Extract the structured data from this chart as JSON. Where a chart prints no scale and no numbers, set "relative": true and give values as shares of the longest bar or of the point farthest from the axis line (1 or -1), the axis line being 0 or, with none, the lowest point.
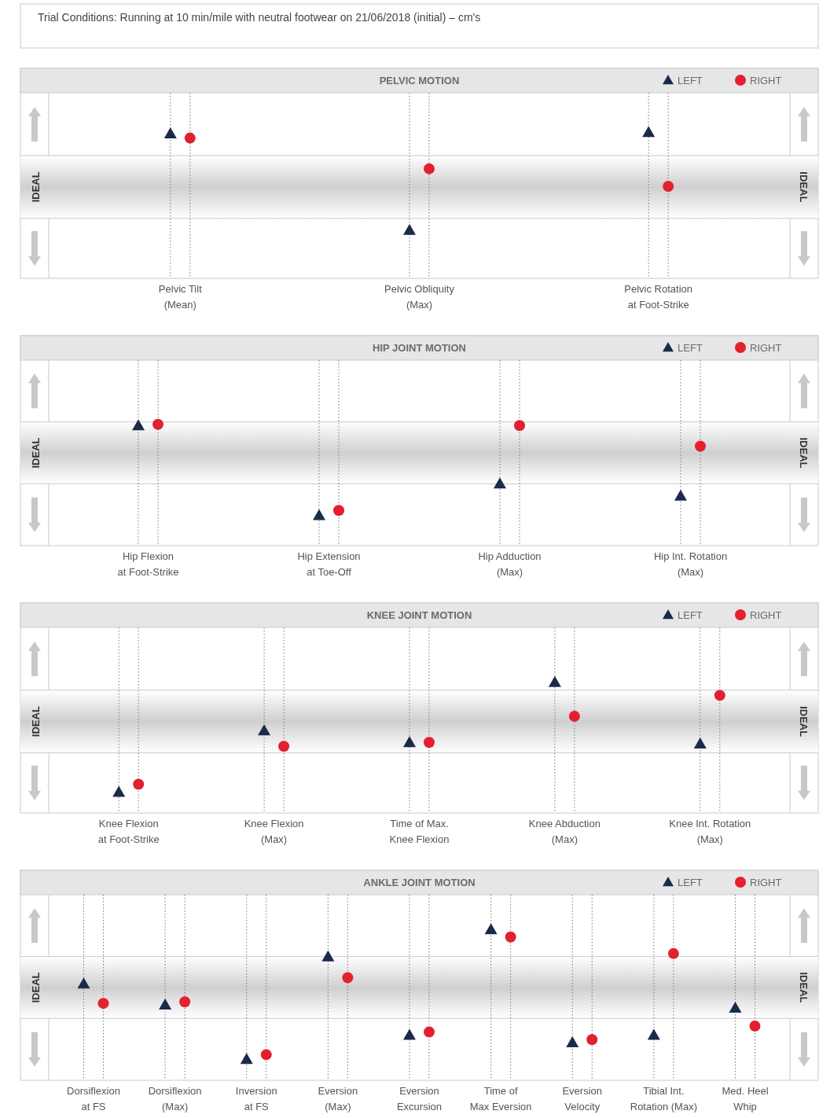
{
  "chart_data": [
    {
      "type": "scatter",
      "title": "PELVIC MOTION",
      "relative": true,
      "annotations": [
        "Trial Conditions: Running at 10 min/mile with neutral footwear on 21/06/2018 (initial) – cm's"
      ],
      "categories": [
        "Pelvic Tilt\n(Mean)",
        "Pelvic Obliquity\n(Max)",
        "Pelvic Rotation\nat Foot-Strike"
      ],
      "legend": "top right",
      "grid": "x",
      "series": [
        {
          "name": "LEFT",
          "color": "#1b2a4a",
          "marker": "triangle",
          "values": [
            0.99,
            0.33,
            1
          ]
        },
        {
          "name": "RIGHT",
          "color": "#e3202f",
          "marker": "circle",
          "values": [
            0.96,
            0.75,
            0.63
          ]
        }
      ],
      "bands": [
        {
          "axis": "y",
          "from": 0.41,
          "to": 0.84,
          "label": "IDEAL",
          "color": "#cfcfcf"
        }
      ]
    },
    {
      "type": "scatter",
      "title": "HIP JOINT MOTION",
      "relative": true,
      "categories": [
        "Hip Flexion\nat Foot-Strike",
        "Hip Extension\nat Toe-Off",
        "Hip Adduction\n(Max)",
        "Hip Int. Rotation\n(Max)"
      ],
      "legend": "top right",
      "grid": "x",
      "series": [
        {
          "name": "LEFT",
          "color": "#1b2a4a",
          "marker": "triangle",
          "values": [
            0.99,
            0.25,
            0.51,
            0.41
          ]
        },
        {
          "name": "RIGHT",
          "color": "#e3202f",
          "marker": "circle",
          "values": [
            1,
            0.29,
            0.99,
            0.82
          ]
        }
      ],
      "bands": [
        {
          "axis": "y",
          "from": 0.51,
          "to": 1.02,
          "label": "IDEAL",
          "color": "#cfcfcf"
        }
      ]
    },
    {
      "type": "scatter",
      "title": "KNEE JOINT MOTION",
      "relative": true,
      "categories": [
        "Knee Flexion\nat Foot-Strike",
        "Knee Flexion\n(Max)",
        "Time of Max.\nKnee Flexion",
        "Knee Abduction\n(Max)",
        "Knee Int. Rotation\n(Max)"
      ],
      "legend": "top right",
      "grid": "x",
      "series": [
        {
          "name": "LEFT",
          "color": "#1b2a4a",
          "marker": "triangle",
          "values": [
            0.16,
            0.63,
            0.54,
            1,
            0.53
          ]
        },
        {
          "name": "RIGHT",
          "color": "#e3202f",
          "marker": "circle",
          "values": [
            0.22,
            0.51,
            0.54,
            0.74,
            0.9
          ]
        }
      ],
      "bands": [
        {
          "axis": "y",
          "from": 0.46,
          "to": 0.94,
          "label": "IDEAL",
          "color": "#cfcfcf"
        }
      ]
    },
    {
      "type": "scatter",
      "title": "ANKLE JOINT MOTION",
      "relative": true,
      "categories": [
        "Dorsiflexion\nat FS",
        "Dorsiflexion\n(Max)",
        "Inversion\nat FS",
        "Eversion\n(Max)",
        "Eversion\nExcursion",
        "Time of\nMax Eversion",
        "Eversion\nVelocity",
        "Tibial Int.\nRotation (Max)",
        "Med. Heel\nWhip"
      ],
      "legend": "top right",
      "grid": "x",
      "series": [
        {
          "name": "LEFT",
          "color": "#1b2a4a",
          "marker": "triangle",
          "values": [
            0.64,
            0.5,
            0.14,
            0.82,
            0.3,
            1,
            0.25,
            0.3,
            0.48
          ]
        },
        {
          "name": "RIGHT",
          "color": "#e3202f",
          "marker": "circle",
          "values": [
            0.51,
            0.52,
            0.17,
            0.68,
            0.32,
            0.95,
            0.27,
            0.84,
            0.36
          ]
        }
      ],
      "bands": [
        {
          "axis": "y",
          "from": 0.41,
          "to": 0.82,
          "label": "IDEAL",
          "color": "#cfcfcf"
        }
      ]
    }
  ]
}
